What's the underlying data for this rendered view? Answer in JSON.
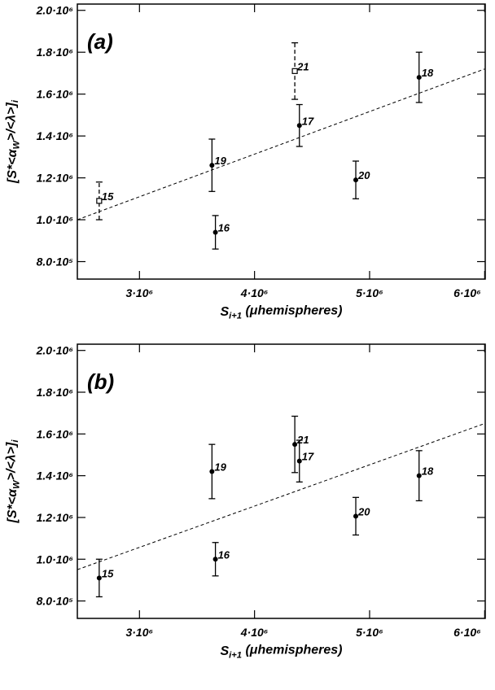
{
  "chart_data": [
    {
      "type": "scatter",
      "panel_label": "(a)",
      "xlabel": [
        {
          "text": "S"
        },
        {
          "text": "i+1",
          "sub": true
        },
        {
          "text": " (μhemispheres)"
        }
      ],
      "ylabel": [
        {
          "text": "[S*<α"
        },
        {
          "text": "W",
          "sub": true
        },
        {
          "text": ">/<λ>]"
        },
        {
          "text": "i",
          "sub": true
        }
      ],
      "xlim": [
        2460000,
        6005000
      ],
      "xticks": [
        {
          "value": 3000000,
          "label": "3·10⁶"
        },
        {
          "value": 4000000,
          "label": "4·10⁶"
        },
        {
          "value": 5000000,
          "label": "5·10⁶"
        },
        {
          "value": 6000000,
          "label": "6·10⁶"
        }
      ],
      "ylim": [
        716500,
        2030000
      ],
      "yticks": [
        {
          "value": 800000,
          "label": "8.0·10⁵"
        },
        {
          "value": 1000000,
          "label": "1.0·10⁶"
        },
        {
          "value": 1200000,
          "label": "1.2·10⁶"
        },
        {
          "value": 1400000,
          "label": "1.4·10⁶"
        },
        {
          "value": 1600000,
          "label": "1.6·10⁶"
        },
        {
          "value": 1800000,
          "label": "1.8·10⁶"
        },
        {
          "value": 2000000,
          "label": "2.0·10⁶"
        }
      ],
      "series": [
        {
          "color": "#000000",
          "labels": [
            "15",
            "19",
            "16",
            "21",
            "17",
            "20",
            "18"
          ],
          "x": [
            2650000,
            3630000,
            3660000,
            4350000,
            4390000,
            4880000,
            5430000
          ],
          "values": [
            1090000,
            1260000,
            940000,
            1710000,
            1450000,
            1190000,
            1680000
          ],
          "errors": [
            90000,
            125000,
            80000,
            135000,
            100000,
            90000,
            120000
          ],
          "markers": [
            "square",
            "circle",
            "circle",
            "square",
            "circle",
            "circle",
            "circle"
          ]
        }
      ],
      "fit_line": {
        "x": [
          2460000,
          6000000
        ],
        "values": [
          1000000,
          1720000
        ]
      }
    },
    {
      "type": "scatter",
      "panel_label": "(b)",
      "xlabel": [
        {
          "text": "S"
        },
        {
          "text": "i+1",
          "sub": true
        },
        {
          "text": " (μhemispheres)"
        }
      ],
      "ylabel": [
        {
          "text": "[S*<α"
        },
        {
          "text": "W",
          "sub": true
        },
        {
          "text": ">/<λ>]"
        },
        {
          "text": "i",
          "sub": true
        }
      ],
      "xlim": [
        2460000,
        6005000
      ],
      "xticks": [
        {
          "value": 3000000,
          "label": "3·10⁶"
        },
        {
          "value": 4000000,
          "label": "4·10⁶"
        },
        {
          "value": 5000000,
          "label": "5·10⁶"
        },
        {
          "value": 6000000,
          "label": "6·10⁶"
        }
      ],
      "ylim": [
        716500,
        2030000
      ],
      "yticks": [
        {
          "value": 800000,
          "label": "8.0·10⁵"
        },
        {
          "value": 1000000,
          "label": "1.0·10⁶"
        },
        {
          "value": 1200000,
          "label": "1.2·10⁶"
        },
        {
          "value": 1400000,
          "label": "1.4·10⁶"
        },
        {
          "value": 1600000,
          "label": "1.6·10⁶"
        },
        {
          "value": 1800000,
          "label": "1.8·10⁶"
        },
        {
          "value": 2000000,
          "label": "2.0·10⁶"
        }
      ],
      "series": [
        {
          "color": "#000000",
          "labels": [
            "15",
            "19",
            "16",
            "21",
            "17",
            "20",
            "18"
          ],
          "x": [
            2650000,
            3630000,
            3660000,
            4350000,
            4390000,
            4880000,
            5430000
          ],
          "values": [
            910000,
            1420000,
            1000000,
            1550000,
            1470000,
            1206000,
            1400000
          ],
          "errors": [
            90000,
            130000,
            80000,
            135000,
            100000,
            90000,
            120000
          ],
          "markers": [
            "circle",
            "circle",
            "circle",
            "circle",
            "circle",
            "circle",
            "circle"
          ]
        }
      ],
      "fit_line": {
        "x": [
          2460000,
          6000000
        ],
        "values": [
          950000,
          1650000
        ]
      }
    }
  ]
}
